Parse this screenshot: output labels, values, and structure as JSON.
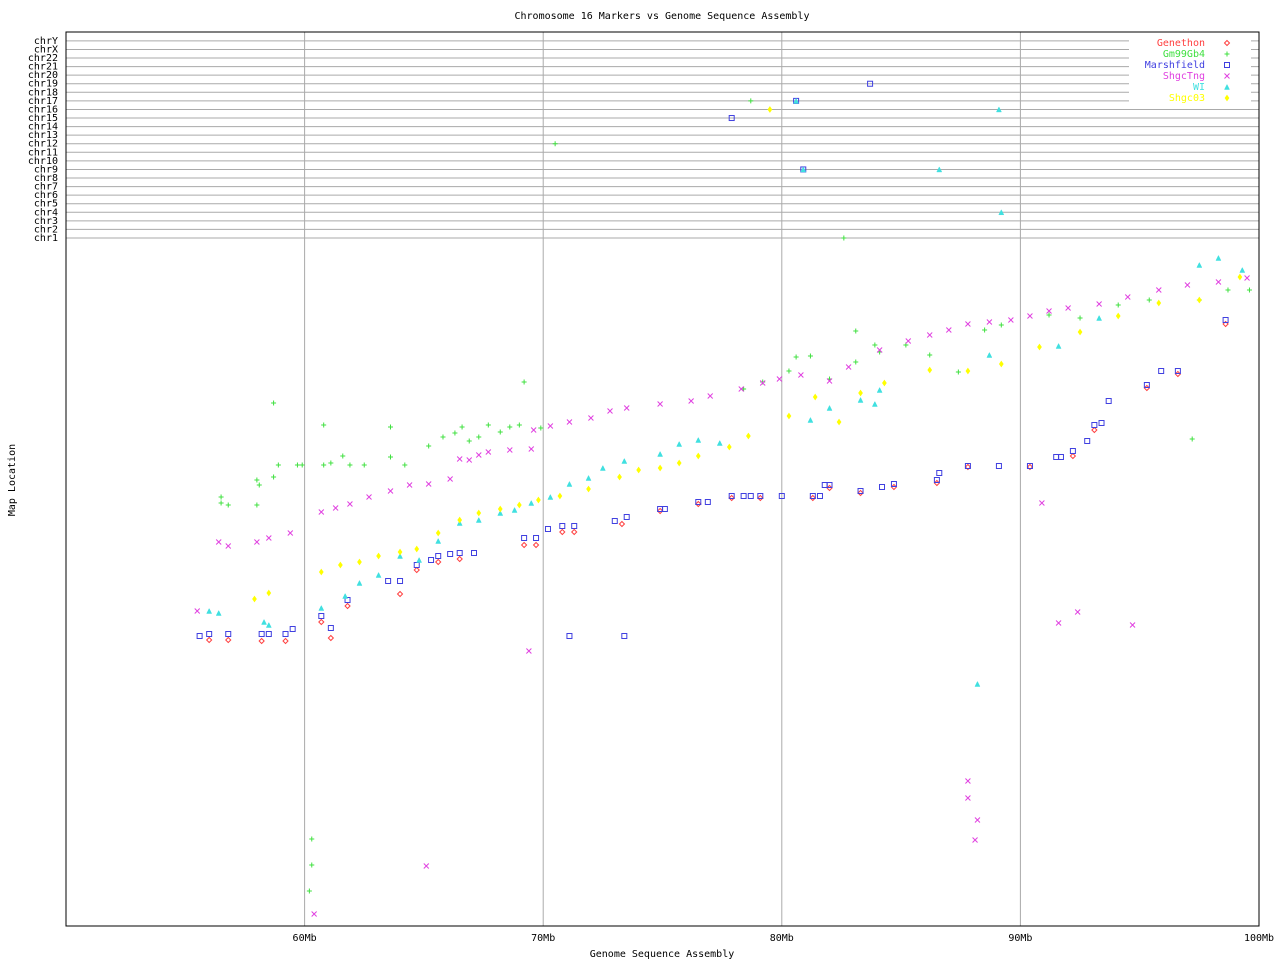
{
  "chart_data": {
    "type": "scatter",
    "title": "Chromosome 16 Markers vs Genome Sequence Assembly",
    "x_label": "Genome Sequence Assembly",
    "y_label": "Map Location",
    "xlim": [
      50,
      100
    ],
    "xticks": [
      {
        "value": 60,
        "label": "60Mb"
      },
      {
        "value": 70,
        "label": "70Mb"
      },
      {
        "value": 80,
        "label": "80Mb"
      },
      {
        "value": 90,
        "label": "90Mb"
      },
      {
        "value": 100,
        "label": "100Mb"
      }
    ],
    "ylim": [
      0,
      681
    ],
    "grid": true,
    "legend": "upper right",
    "chromosomes": [
      "chr1",
      "chr2",
      "chr3",
      "chr4",
      "chr5",
      "chr6",
      "chr7",
      "chr8",
      "chr9",
      "chr10",
      "chr11",
      "chr12",
      "chr13",
      "chr14",
      "chr15",
      "chr16",
      "chr17",
      "chr18",
      "chr19",
      "chr20",
      "chr21",
      "chr22",
      "chrX",
      "chrY"
    ],
    "series": [
      {
        "name": "Genethon",
        "color": "#ff4040",
        "marker": "diamond",
        "x": [
          56.0,
          56.8,
          58.2,
          59.2,
          60.7,
          61.1,
          61.8,
          64.0,
          64.7,
          65.6,
          66.5,
          69.2,
          69.7,
          70.8,
          71.3,
          73.3,
          74.9,
          76.5,
          77.9,
          79.1,
          81.3,
          82.0,
          83.3,
          84.7,
          86.5,
          87.8,
          90.4,
          92.2,
          93.1,
          95.3,
          96.6,
          98.6
        ],
        "values": [
          286,
          286,
          285,
          285,
          304,
          288,
          320,
          332,
          356,
          364,
          367,
          381,
          381,
          394,
          394,
          402,
          415,
          422,
          428,
          428,
          428,
          438,
          433,
          439,
          443,
          459,
          459,
          470,
          496,
          538,
          552,
          602
        ],
        "other_x": [],
        "other_chr": []
      },
      {
        "name": "Gm99Gb4",
        "color": "#40e040",
        "marker": "plus",
        "x": [
          56.5,
          56.5,
          56.8,
          58.0,
          58.1,
          58.0,
          58.7,
          58.7,
          58.9,
          59.7,
          59.9,
          60.8,
          60.8,
          61.1,
          61.6,
          61.9,
          62.5,
          63.6,
          63.6,
          64.2,
          65.2,
          65.8,
          66.3,
          66.6,
          66.9,
          67.3,
          67.7,
          68.2,
          68.6,
          69.0,
          69.2,
          69.9,
          78.4,
          79.2,
          80.3,
          80.6,
          81.2,
          82.0,
          83.1,
          83.1,
          83.9,
          84.1,
          85.2,
          86.2,
          87.4,
          88.5,
          89.2,
          91.2,
          92.5,
          94.1,
          95.4,
          97.2,
          97.5,
          98.7,
          99.6,
          60.3,
          60.3,
          60.2
        ],
        "values": [
          429,
          423,
          421,
          446,
          441,
          421,
          523,
          449,
          461,
          461,
          461,
          501,
          461,
          463,
          470,
          461,
          461,
          499,
          469,
          461,
          480,
          489,
          493,
          499,
          485,
          489,
          501,
          494,
          499,
          501,
          544,
          498,
          537,
          544,
          555,
          569,
          570,
          547,
          595,
          564,
          581,
          574,
          581,
          571,
          554,
          596,
          601,
          611,
          608,
          621,
          626,
          487,
          626,
          636,
          636,
          87,
          61,
          35
        ],
        "other_x": [
          78.7,
          70.5,
          82.6
        ],
        "other_chr": [
          "chr17",
          "chr12",
          "chr1"
        ]
      },
      {
        "name": "Marshfield",
        "color": "#4040e0",
        "marker": "square",
        "x": [
          55.6,
          56.0,
          56.8,
          58.2,
          58.5,
          59.2,
          59.5,
          60.7,
          61.1,
          61.8,
          63.5,
          64.0,
          64.7,
          65.3,
          65.6,
          66.1,
          66.5,
          67.1,
          69.2,
          69.7,
          70.2,
          70.8,
          71.3,
          73.0,
          73.5,
          74.9,
          75.1,
          76.5,
          76.9,
          77.9,
          78.4,
          78.7,
          79.1,
          80.0,
          81.3,
          81.6,
          81.8,
          82.0,
          83.3,
          84.2,
          84.7,
          86.5,
          86.6,
          87.8,
          89.1,
          90.4,
          91.5,
          91.7,
          92.2,
          92.8,
          93.1,
          93.4,
          93.7,
          95.3,
          95.9,
          96.6,
          98.6,
          71.1,
          73.4
        ],
        "values": [
          290,
          292,
          292,
          292,
          292,
          292,
          297,
          310,
          298,
          326,
          345,
          345,
          361,
          366,
          370,
          372,
          373,
          373,
          388,
          388,
          397,
          400,
          400,
          405,
          409,
          417,
          417,
          424,
          424,
          430,
          430,
          430,
          430,
          430,
          430,
          430,
          441,
          441,
          435,
          439,
          442,
          446,
          453,
          460,
          460,
          460,
          469,
          469,
          475,
          485,
          501,
          503,
          525,
          541,
          555,
          555,
          606,
          290,
          290
        ],
        "other_x": [
          77.9,
          80.6,
          83.7,
          80.9
        ],
        "other_chr": [
          "chr15",
          "chr17",
          "chr19",
          "chr9"
        ]
      },
      {
        "name": "ShgcTng",
        "color": "#e040e0",
        "marker": "cross",
        "x": [
          55.5,
          56.4,
          56.8,
          58.0,
          58.5,
          59.4,
          60.7,
          61.3,
          61.9,
          62.7,
          63.6,
          64.4,
          65.2,
          66.1,
          66.5,
          66.9,
          67.3,
          67.7,
          68.6,
          69.5,
          69.6,
          70.3,
          71.1,
          72.0,
          72.8,
          73.5,
          74.9,
          76.2,
          77.0,
          78.3,
          79.2,
          79.9,
          80.8,
          82.0,
          82.8,
          84.1,
          85.3,
          86.2,
          87.0,
          87.8,
          88.7,
          89.6,
          90.4,
          91.2,
          92.0,
          93.3,
          94.5,
          95.8,
          97.0,
          98.3,
          99.5,
          69.4,
          90.9,
          91.6,
          92.4,
          94.7,
          87.8,
          87.8,
          88.2,
          88.1,
          65.1,
          60.4
        ],
        "values": [
          315,
          384,
          380,
          384,
          388,
          393,
          414,
          418,
          422,
          429,
          435,
          441,
          442,
          447,
          467,
          466,
          471,
          474,
          476,
          477,
          496,
          500,
          504,
          508,
          515,
          518,
          522,
          525,
          530,
          537,
          543,
          547,
          551,
          545,
          559,
          576,
          585,
          591,
          596,
          602,
          604,
          606,
          610,
          615,
          618,
          622,
          629,
          636,
          641,
          644,
          648,
          275,
          423,
          303,
          314,
          301,
          145,
          128,
          106,
          86,
          60,
          12
        ],
        "other_x": [],
        "other_chr": []
      },
      {
        "name": "WI",
        "color": "#40e0e0",
        "marker": "triangle",
        "x": [
          56.0,
          56.4,
          58.3,
          58.5,
          60.7,
          61.7,
          62.3,
          63.1,
          64.0,
          64.8,
          65.6,
          66.5,
          67.3,
          68.2,
          68.8,
          69.5,
          70.3,
          71.1,
          71.9,
          72.5,
          73.4,
          74.9,
          75.7,
          76.5,
          77.4,
          81.2,
          82.0,
          83.3,
          83.9,
          84.1,
          88.7,
          91.6,
          93.3,
          97.5,
          98.3,
          99.3,
          88.2
        ],
        "values": [
          315,
          313,
          304,
          301,
          318,
          330,
          343,
          351,
          370,
          366,
          385,
          403,
          406,
          413,
          416,
          423,
          429,
          442,
          448,
          458,
          465,
          472,
          482,
          486,
          483,
          506,
          518,
          526,
          522,
          536,
          571,
          580,
          608,
          661,
          668,
          656,
          242
        ],
        "other_x": [
          80.6,
          80.9,
          86.6,
          89.1,
          89.2
        ],
        "other_chr": [
          "chr17",
          "chr9",
          "chr9",
          "chr16",
          "chr4"
        ]
      },
      {
        "name": "Shgc03",
        "color": "#ffff00",
        "marker": "star",
        "x": [
          57.9,
          58.5,
          60.7,
          61.5,
          62.3,
          63.1,
          64.0,
          64.7,
          65.6,
          66.5,
          67.3,
          68.2,
          69.0,
          69.8,
          70.7,
          71.9,
          73.2,
          74.0,
          74.9,
          75.7,
          76.5,
          77.8,
          78.6,
          80.3,
          81.4,
          82.4,
          83.3,
          84.3,
          86.2,
          87.8,
          89.2,
          90.8,
          92.5,
          94.1,
          95.8,
          97.5,
          99.2
        ],
        "values": [
          327,
          333,
          354,
          361,
          364,
          370,
          374,
          377,
          393,
          406,
          413,
          417,
          421,
          426,
          430,
          437,
          449,
          456,
          458,
          463,
          470,
          479,
          490,
          510,
          529,
          504,
          533,
          543,
          556,
          555,
          562,
          579,
          594,
          610,
          623,
          626,
          649
        ],
        "other_x": [
          79.5
        ],
        "other_chr": [
          "chr16"
        ]
      }
    ]
  }
}
